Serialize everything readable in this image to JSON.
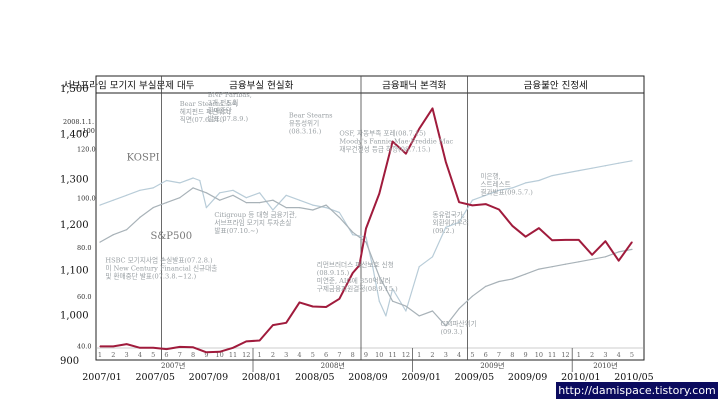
{
  "chart_data": {
    "type": "line",
    "phases": [
      {
        "label": "서브프라임 모기지 부실문제 대두",
        "start": 0,
        "end": 5
      },
      {
        "label": "금융부실 현실화",
        "start": 5,
        "end": 20
      },
      {
        "label": "금융패닉 본격화",
        "start": 20,
        "end": 28
      },
      {
        "label": "금융불안 진정세",
        "start": 28,
        "end": 40
      }
    ],
    "left_axis": {
      "ticks": [
        "1,500",
        "1,400",
        "1,300",
        "1,200",
        "1,100",
        "1,000",
        "900"
      ],
      "min": 900,
      "max": 1500
    },
    "inner_axis": {
      "ticks": [
        "120.0",
        "100.0",
        "80.0",
        "60.0",
        "40.0"
      ],
      "header": [
        "2008.1.1.",
        "=100"
      ],
      "min": 35,
      "max": 130
    },
    "x_dates": [
      "2007/01",
      "2007/05",
      "2007/09",
      "2008/01",
      "2008/05",
      "2008/09",
      "2009/01",
      "2009/05",
      "2009/09",
      "2010/01",
      "2010/05"
    ],
    "month_numbers": [
      "1",
      "2",
      "3",
      "4",
      "5",
      "6",
      "7",
      "8",
      "9",
      "10",
      "11",
      "12",
      "1",
      "2",
      "3",
      "4",
      "5",
      "6",
      "7",
      "8",
      "9",
      "10",
      "11",
      "12",
      "1",
      "2",
      "3",
      "4",
      "5",
      "6",
      "7",
      "8",
      "9",
      "10",
      "11",
      "12",
      "1",
      "2",
      "3",
      "4",
      "5"
    ],
    "year_labels": [
      "2007년",
      "2008년",
      "2009년",
      "2010년"
    ],
    "series": [
      {
        "name": "KOSPI",
        "color": "#b8ccd8",
        "x": [
          0,
          1,
          2,
          3,
          4,
          5,
          6,
          7,
          7.5,
          8,
          9,
          10,
          11,
          12,
          13,
          14,
          15,
          16,
          17,
          18,
          19,
          20,
          20.5,
          21,
          21.5,
          22,
          23,
          24,
          25,
          26,
          27,
          28,
          29,
          30,
          31,
          32,
          33,
          34,
          35,
          36,
          37,
          38,
          39,
          40
        ],
        "y": [
          97,
          99,
          101,
          103,
          104,
          107,
          106,
          108,
          107,
          96,
          102,
          103,
          100,
          102,
          95,
          101,
          99,
          97,
          96,
          94,
          85,
          84,
          72,
          58,
          52,
          63,
          54,
          72,
          76,
          88,
          90,
          99,
          101,
          103,
          104,
          106,
          107,
          109,
          110,
          111,
          112,
          113,
          114,
          115
        ]
      },
      {
        "name": "S&P500",
        "color": "#a8b2b8",
        "x": [
          0,
          1,
          2,
          3,
          4,
          5,
          6,
          7,
          8,
          9,
          10,
          11,
          12,
          13,
          14,
          15,
          16,
          17,
          18,
          19,
          20,
          21,
          22,
          23,
          24,
          25,
          26,
          27,
          28,
          29,
          30,
          31,
          32,
          33,
          34,
          35,
          36,
          37,
          38,
          39,
          40
        ],
        "y": [
          82,
          85,
          87,
          92,
          96,
          98,
          100,
          104,
          102,
          99,
          101,
          98,
          98,
          99,
          96,
          96,
          95,
          97,
          92,
          86,
          82,
          68,
          58,
          56,
          52,
          54,
          48,
          55,
          60,
          64,
          66,
          67,
          69,
          71,
          72,
          73,
          74,
          75,
          76,
          78,
          79
        ]
      },
      {
        "name": "",
        "color": "#a01b3c",
        "x": [
          0,
          1,
          2,
          3,
          4,
          5,
          6,
          7,
          8,
          9,
          10,
          11,
          12,
          13,
          14,
          15,
          16,
          17,
          18,
          19,
          19.5,
          20,
          21,
          22,
          23,
          24,
          25,
          26,
          27,
          28,
          29,
          30,
          31,
          32,
          33,
          34,
          35,
          36,
          37,
          38,
          39,
          40
        ],
        "y": [
          930,
          930,
          935,
          927,
          927,
          924,
          929,
          928,
          917,
          918,
          927,
          941,
          943,
          977,
          982,
          1027,
          1018,
          1017,
          1035,
          1092,
          1109,
          1190,
          1267,
          1382,
          1355,
          1410,
          1455,
          1337,
          1248,
          1241,
          1244,
          1232,
          1196,
          1172,
          1191,
          1164,
          1165,
          1165,
          1132,
          1162,
          1119,
          1160
        ]
      }
    ],
    "annotations": [
      {
        "text": "Bear Stearns 소속\n헤지펀드 파산위기\n직면(07.6.21.)",
        "x": 6,
        "y": 1460
      },
      {
        "text": "BNP Paribas,\n3개 펀드의\n환매중단\n발표(07.8.9.)",
        "x": 8.1,
        "y": 1480
      },
      {
        "text": "Bear Stearns\n유동성위기\n(08.3.16.)",
        "x": 14.2,
        "y": 1435
      },
      {
        "text": "OSF, 자동부족 포레(08.7.15)\nMoody's Fannie Mae·Freddie Mac\n재무건전성 등급 하향(08.7.15.)",
        "x": 18,
        "y": 1395
      },
      {
        "text": "Citigroup 등 대형 금융기관,\n서브프라임 모기지 투자손실\n발표(07.10.∼)",
        "x": 8.6,
        "y": 1215
      },
      {
        "text": "HSBC 모기지사업 손실발표(07.2.8.)\n미 New Century Financial 신규대출\n및 환매중단 발표(07.3.8.∼12.)",
        "x": 0.4,
        "y": 1115
      },
      {
        "text": "리먼브러더스 파산보호 신청\n(08.9.15.)\n미연준, AIG에 850억달러\n구제금융지원결정(08.9.15.)",
        "x": 16.3,
        "y": 1105
      },
      {
        "text": "동유럽국가,\n외환위기우려\n(09.2.)",
        "x": 25,
        "y": 1215
      },
      {
        "text": "미은행,\n스트레스트\n결과발표(09.5.7.)",
        "x": 28.6,
        "y": 1300
      },
      {
        "text": "GM파산위기\n(09.3.)",
        "x": 25.6,
        "y": 975
      }
    ],
    "series_labels": [
      {
        "text": "KOSPI",
        "x": 2,
        "y": 1340
      },
      {
        "text": "S&P500",
        "x": 3.8,
        "y": 1167
      }
    ],
    "grid": false
  },
  "watermark": "http://damispace.tistory.com"
}
